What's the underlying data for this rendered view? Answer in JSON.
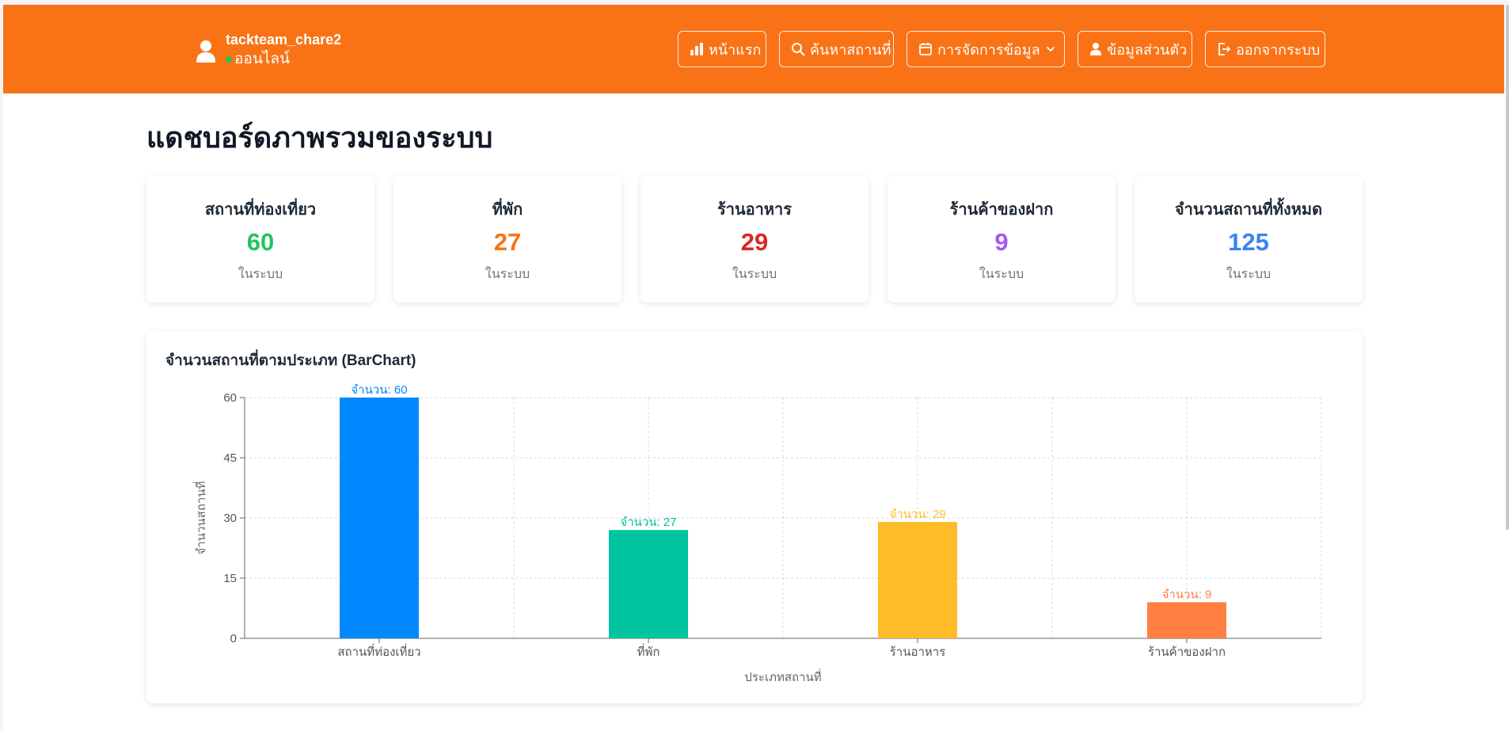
{
  "header": {
    "username": "tackteam_chare2",
    "status": "ออนไลน์",
    "status_color": "#22c55e",
    "brand_color": "#f97316",
    "nav": [
      {
        "label": "หน้าแรก",
        "icon": "bar-chart-icon"
      },
      {
        "label": "ค้นหาสถานที่",
        "icon": "search-icon"
      },
      {
        "label": "การจัดการข้อมูล",
        "icon": "calendar-icon",
        "dropdown": true
      },
      {
        "label": "ข้อมูลส่วนตัว",
        "icon": "user-icon"
      },
      {
        "label": "ออกจากระบบ",
        "icon": "logout-icon"
      }
    ]
  },
  "page": {
    "title": "แดชบอร์ดภาพรวมของระบบ"
  },
  "stats": [
    {
      "title": "สถานที่ท่องเที่ยว",
      "value": "60",
      "sub": "ในระบบ",
      "color": "#22c55e"
    },
    {
      "title": "ที่พัก",
      "value": "27",
      "sub": "ในระบบ",
      "color": "#f97316"
    },
    {
      "title": "ร้านอาหาร",
      "value": "29",
      "sub": "ในระบบ",
      "color": "#dc2626"
    },
    {
      "title": "ร้านค้าของฝาก",
      "value": "9",
      "sub": "ในระบบ",
      "color": "#a855f7"
    },
    {
      "title": "จำนวนสถานที่ทั้งหมด",
      "value": "125",
      "sub": "ในระบบ",
      "color": "#3b82f6"
    }
  ],
  "chart_data": {
    "type": "bar",
    "title": "จำนวนสถานที่ตามประเภท (BarChart)",
    "categories": [
      "สถานที่ท่องเที่ยว",
      "ที่พัก",
      "ร้านอาหาร",
      "ร้านค้าของฝาก"
    ],
    "values": [
      60,
      27,
      29,
      9
    ],
    "colors": [
      "#0088fe",
      "#00c49f",
      "#ffbb28",
      "#ff8042"
    ],
    "label_prefix": "จำนวน: ",
    "xlabel": "ประเภทสถานที่",
    "ylabel": "จำนวนสถานที่",
    "ylim": [
      0,
      60
    ],
    "yticks": [
      0,
      15,
      30,
      45,
      60
    ],
    "grid": true
  }
}
